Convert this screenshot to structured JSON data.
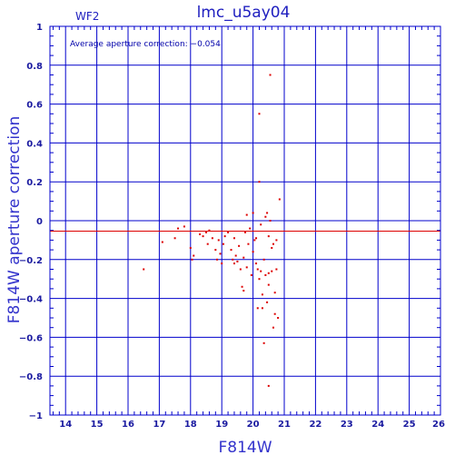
{
  "chart_data": {
    "type": "scatter",
    "title": "lmc_u5ay04",
    "subtitle": "WF2",
    "xlabel": "F814W",
    "ylabel": "F814W aperture correction",
    "annotation": "Average aperture correction: −0.054",
    "xlim": [
      13.5,
      26
    ],
    "ylim": [
      -1,
      1
    ],
    "grid": true,
    "x_ticks": [
      "14",
      "15",
      "16",
      "17",
      "18",
      "19",
      "20",
      "21",
      "22",
      "23",
      "24",
      "25",
      "26"
    ],
    "y_ticks": [
      "−1",
      "−0.8",
      "−0.6",
      "−0.4",
      "−0.2",
      "0",
      "0.2",
      "0.4",
      "0.6",
      "0.8",
      "1"
    ],
    "average_line": -0.054,
    "colors": {
      "axes": "#0000cc",
      "points": "#dd0000",
      "average_line": "#dd0000"
    },
    "points": [
      [
        16.5,
        -0.25
      ],
      [
        17.1,
        -0.11
      ],
      [
        17.5,
        -0.09
      ],
      [
        17.6,
        -0.04
      ],
      [
        17.8,
        -0.03
      ],
      [
        18.0,
        -0.14
      ],
      [
        18.05,
        -0.2
      ],
      [
        18.1,
        -0.18
      ],
      [
        18.4,
        -0.08
      ],
      [
        18.5,
        -0.06
      ],
      [
        18.55,
        -0.12
      ],
      [
        18.6,
        -0.05
      ],
      [
        18.7,
        -0.09
      ],
      [
        18.8,
        -0.15
      ],
      [
        18.85,
        -0.2
      ],
      [
        18.9,
        -0.1
      ],
      [
        18.95,
        -0.17
      ],
      [
        19.0,
        -0.22
      ],
      [
        19.05,
        -0.12
      ],
      [
        19.1,
        -0.08
      ],
      [
        19.2,
        -0.06
      ],
      [
        19.3,
        -0.15
      ],
      [
        19.35,
        -0.2
      ],
      [
        19.4,
        -0.09
      ],
      [
        19.45,
        -0.18
      ],
      [
        19.5,
        -0.21
      ],
      [
        19.55,
        -0.13
      ],
      [
        19.6,
        -0.25
      ],
      [
        19.65,
        -0.34
      ],
      [
        19.7,
        -0.36
      ],
      [
        19.7,
        -0.19
      ],
      [
        19.75,
        -0.06
      ],
      [
        19.8,
        0.03
      ],
      [
        19.8,
        -0.24
      ],
      [
        19.85,
        -0.12
      ],
      [
        19.9,
        -0.04
      ],
      [
        19.95,
        -0.28
      ],
      [
        20.0,
        0.04
      ],
      [
        20.0,
        -0.16
      ],
      [
        20.05,
        -0.1
      ],
      [
        20.1,
        -0.09
      ],
      [
        20.1,
        -0.22
      ],
      [
        20.15,
        -0.25
      ],
      [
        20.15,
        -0.45
      ],
      [
        20.2,
        -0.3
      ],
      [
        20.2,
        0.55
      ],
      [
        20.2,
        0.2
      ],
      [
        20.25,
        -0.02
      ],
      [
        20.25,
        -0.26
      ],
      [
        20.3,
        -0.45
      ],
      [
        20.35,
        -0.2
      ],
      [
        20.35,
        -0.63
      ],
      [
        20.4,
        0.02
      ],
      [
        20.4,
        -0.28
      ],
      [
        20.45,
        0.04
      ],
      [
        20.45,
        -0.42
      ],
      [
        20.5,
        -0.85
      ],
      [
        20.5,
        -0.08
      ],
      [
        20.5,
        -0.33
      ],
      [
        20.55,
        0.75
      ],
      [
        20.55,
        0.0
      ],
      [
        20.6,
        -0.14
      ],
      [
        20.6,
        -0.26
      ],
      [
        20.65,
        -0.12
      ],
      [
        20.65,
        -0.55
      ],
      [
        20.7,
        -0.37
      ],
      [
        20.7,
        -0.48
      ],
      [
        20.75,
        -0.1
      ],
      [
        20.75,
        -0.25
      ],
      [
        20.8,
        -0.5
      ],
      [
        20.85,
        0.11
      ],
      [
        20.5,
        -0.27
      ],
      [
        20.3,
        -0.38
      ],
      [
        19.4,
        -0.22
      ],
      [
        18.3,
        -0.07
      ]
    ]
  }
}
